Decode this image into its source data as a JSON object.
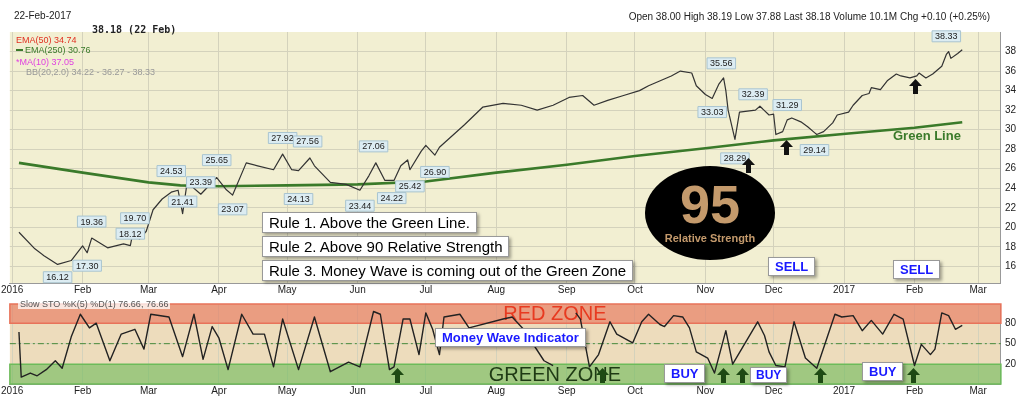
{
  "chart_data": [
    {
      "type": "line",
      "subtitle": "22-Feb-2017",
      "marker": "none",
      "grid": true,
      "legend": "top left",
      "xlim": [
        "2015-12-31",
        "2017-03-11"
      ],
      "xticks": [
        {
          "value": "2016-01-01",
          "label": "2016"
        },
        {
          "value": "2016-02-01",
          "label": "Feb"
        },
        {
          "value": "2016-03-01",
          "label": "Mar"
        },
        {
          "value": "2016-04-01",
          "label": "Apr"
        },
        {
          "value": "2016-05-01",
          "label": "May"
        },
        {
          "value": "2016-06-01",
          "label": "Jun"
        },
        {
          "value": "2016-07-01",
          "label": "Jul"
        },
        {
          "value": "2016-08-01",
          "label": "Aug"
        },
        {
          "value": "2016-09-01",
          "label": "Sep"
        },
        {
          "value": "2016-10-01",
          "label": "Oct"
        },
        {
          "value": "2016-11-01",
          "label": "Nov"
        },
        {
          "value": "2016-12-01",
          "label": "Dec"
        },
        {
          "value": "2017-01-01",
          "label": "2017"
        },
        {
          "value": "2017-02-01",
          "label": "Feb"
        },
        {
          "value": "2017-03-01",
          "label": "Mar"
        }
      ],
      "ylim": [
        14.3,
        40
      ],
      "yticks": [
        16,
        18,
        20,
        22,
        24,
        26,
        28,
        30,
        32,
        34,
        36,
        38
      ],
      "series": [
        {
          "color": "#333333",
          "x": [
            "2016-01-04",
            "2016-01-11",
            "2016-01-15",
            "2016-01-21",
            "2016-01-27",
            "2016-02-01",
            "2016-02-03",
            "2016-02-05",
            "2016-02-12",
            "2016-02-19",
            "2016-02-22",
            "2016-02-23",
            "2016-02-26",
            "2016-02-29",
            "2016-03-03",
            "2016-03-07",
            "2016-03-11",
            "2016-03-14",
            "2016-03-16",
            "2016-03-18",
            "2016-03-24",
            "2016-03-31",
            "2016-04-04",
            "2016-04-07",
            "2016-04-13",
            "2016-04-18",
            "2016-04-25",
            "2016-04-29",
            "2016-05-03",
            "2016-05-06",
            "2016-05-11",
            "2016-05-13",
            "2016-05-20",
            "2016-05-27",
            "2016-06-02",
            "2016-06-06",
            "2016-06-09",
            "2016-06-13",
            "2016-06-17",
            "2016-06-20",
            "2016-06-23",
            "2016-06-24",
            "2016-06-29",
            "2016-07-01",
            "2016-07-05",
            "2016-07-07",
            "2016-07-18",
            "2016-07-26",
            "2016-08-04",
            "2016-08-12",
            "2016-08-19",
            "2016-08-26",
            "2016-09-02",
            "2016-09-08",
            "2016-09-13",
            "2016-09-19",
            "2016-09-26",
            "2016-10-03",
            "2016-10-07",
            "2016-10-17",
            "2016-10-21",
            "2016-10-26",
            "2016-10-28",
            "2016-11-01",
            "2016-11-04",
            "2016-11-07",
            "2016-11-09",
            "2016-11-10",
            "2016-11-11",
            "2016-11-14",
            "2016-11-16",
            "2016-11-23",
            "2016-11-25",
            "2016-11-29",
            "2016-12-01",
            "2016-12-02",
            "2016-12-05",
            "2016-12-07",
            "2016-12-09",
            "2016-12-13",
            "2016-12-16",
            "2016-12-19",
            "2016-12-20",
            "2016-12-23",
            "2016-12-27",
            "2016-12-29",
            "2017-01-03",
            "2017-01-05",
            "2017-01-09",
            "2017-01-12",
            "2017-01-13",
            "2017-01-17",
            "2017-01-20",
            "2017-01-24",
            "2017-01-26",
            "2017-01-30",
            "2017-02-02",
            "2017-02-03",
            "2017-02-06",
            "2017-02-09",
            "2017-02-13",
            "2017-02-15",
            "2017-02-16",
            "2017-02-17",
            "2017-02-20",
            "2017-02-22"
          ],
          "values": [
            19.5,
            17.8,
            17.1,
            16.2,
            16.6,
            18.1,
            17.4,
            18.9,
            17.9,
            18.3,
            18.12,
            19.3,
            18.8,
            19.6,
            21.8,
            22.9,
            23.6,
            23.8,
            21.41,
            24.6,
            23.39,
            25.1,
            23.9,
            23.3,
            26.6,
            26.3,
            25.9,
            27.5,
            25.9,
            25.8,
            27.1,
            26.3,
            24.6,
            24.4,
            23.8,
            25.3,
            26.6,
            24.8,
            24.8,
            26.3,
            26.9,
            25.9,
            27.8,
            28.4,
            27.4,
            28.2,
            30.5,
            32.3,
            32.7,
            32.5,
            32.0,
            32.5,
            33.3,
            33.5,
            32.5,
            33.0,
            33.5,
            34.0,
            34.5,
            35.5,
            36.0,
            35.8,
            34.5,
            33.6,
            33.2,
            34.7,
            35.3,
            34.0,
            32.0,
            29.0,
            31.8,
            32.0,
            32.4,
            31.5,
            31.6,
            29.5,
            29.8,
            31.0,
            31.2,
            30.8,
            30.3,
            29.7,
            29.5,
            29.8,
            30.7,
            31.5,
            31.8,
            32.5,
            33.5,
            33.7,
            34.3,
            34.1,
            35.0,
            35.7,
            35.5,
            35.3,
            35.5,
            35.8,
            35.3,
            35.7,
            36.5,
            37.7,
            38.0,
            37.3,
            37.8,
            38.18
          ]
        },
        {
          "name": "EMA(250) 30.76",
          "color": "#3a7a2a",
          "x": [
            "2016-01-04",
            "2016-02-01",
            "2016-03-01",
            "2016-03-15",
            "2016-04-01",
            "2016-05-01",
            "2016-06-01",
            "2016-07-01",
            "2016-08-01",
            "2016-09-01",
            "2016-10-01",
            "2016-11-01",
            "2016-12-01",
            "2017-01-03",
            "2017-02-01",
            "2017-02-22"
          ],
          "values": [
            26.6,
            25.6,
            24.6,
            24.3,
            24.2,
            24.3,
            24.4,
            24.7,
            25.6,
            26.4,
            27.3,
            28.1,
            28.9,
            29.6,
            30.2,
            30.76
          ]
        }
      ],
      "annotations": [
        "38.18 (22 Feb)",
        "EMA(50) 34.74",
        "*MA(10) 37.05",
        "BB(20,2.0) 34.22 - 36.27 - 38.33",
        "Open 38.00 High 38.19 Low 37.88 Last 38.18 Volume 10.1M Chg +0.10 (+0.25%)",
        "Rule 1. Above the Green Line.",
        "Rule 2. Above 90 Relative Strength",
        "Rule 3. Money Wave is coming out of the Green Zone",
        "95",
        "Relative Strength",
        "Green Line",
        {
          "text": "16.12",
          "x": "2016-01-21",
          "y": 16.12
        },
        {
          "text": "17.30",
          "x": "2016-02-03",
          "y": 17.3
        },
        {
          "text": "19.36",
          "x": "2016-02-05",
          "y": 19.36
        },
        {
          "text": "18.12",
          "x": "2016-02-22",
          "y": 18.12
        },
        {
          "text": "19.70",
          "x": "2016-02-24",
          "y": 19.7
        },
        {
          "text": "24.53",
          "x": "2016-03-11",
          "y": 24.53
        },
        {
          "text": "21.41",
          "x": "2016-03-16",
          "y": 21.41
        },
        {
          "text": "23.39",
          "x": "2016-03-24",
          "y": 23.39
        },
        {
          "text": "25.65",
          "x": "2016-03-31",
          "y": 25.65
        },
        {
          "text": "23.07",
          "x": "2016-04-07",
          "y": 23.07
        },
        {
          "text": "27.92",
          "x": "2016-04-29",
          "y": 27.92
        },
        {
          "text": "24.13",
          "x": "2016-05-06",
          "y": 24.13
        },
        {
          "text": "27.56",
          "x": "2016-05-10",
          "y": 27.56
        },
        {
          "text": "23.44",
          "x": "2016-06-02",
          "y": 23.44
        },
        {
          "text": "27.06",
          "x": "2016-06-08",
          "y": 27.06
        },
        {
          "text": "24.22",
          "x": "2016-06-16",
          "y": 24.22
        },
        {
          "text": "25.42",
          "x": "2016-06-24",
          "y": 25.42
        },
        {
          "text": "26.90",
          "x": "2016-07-05",
          "y": 26.9
        },
        {
          "text": "33.03",
          "x": "2016-11-04",
          "y": 33.03
        },
        {
          "text": "35.56",
          "x": "2016-11-08",
          "y": 35.56
        },
        {
          "text": "28.29",
          "x": "2016-11-14",
          "y": 28.29
        },
        {
          "text": "32.39",
          "x": "2016-11-22",
          "y": 32.39
        },
        {
          "text": "31.29",
          "x": "2016-12-07",
          "y": 31.29
        },
        {
          "text": "29.14",
          "x": "2016-12-19",
          "y": 29.14
        },
        {
          "text": "38.33",
          "x": "2017-02-15",
          "y": 38.33
        }
      ]
    },
    {
      "type": "line",
      "marker": "none",
      "grid": true,
      "xlim": [
        "2015-12-31",
        "2017-03-11"
      ],
      "xticks": [
        {
          "value": "2016-01-01",
          "label": "2016"
        },
        {
          "value": "2016-02-01",
          "label": "Feb"
        },
        {
          "value": "2016-03-01",
          "label": "Mar"
        },
        {
          "value": "2016-04-01",
          "label": "Apr"
        },
        {
          "value": "2016-05-01",
          "label": "May"
        },
        {
          "value": "2016-06-01",
          "label": "Jun"
        },
        {
          "value": "2016-07-01",
          "label": "Jul"
        },
        {
          "value": "2016-08-01",
          "label": "Aug"
        },
        {
          "value": "2016-09-01",
          "label": "Sep"
        },
        {
          "value": "2016-10-01",
          "label": "Oct"
        },
        {
          "value": "2016-11-01",
          "label": "Nov"
        },
        {
          "value": "2016-12-01",
          "label": "Dec"
        },
        {
          "value": "2017-01-01",
          "label": "2017"
        },
        {
          "value": "2017-02-01",
          "label": "Feb"
        },
        {
          "value": "2017-03-01",
          "label": "Mar"
        }
      ],
      "ylim": [
        -9,
        108
      ],
      "yticks": [
        20,
        50,
        80
      ],
      "bands": [
        {
          "axis": "y",
          "from": 80,
          "to": 108,
          "label": "RED ZONE",
          "color": "#e8735a"
        },
        {
          "axis": "y",
          "from": -9,
          "to": 20,
          "label": "GREEN ZONE",
          "color": "#6dbb5a"
        }
      ],
      "ref_lines": [
        {
          "axis": "y",
          "value": 50,
          "color": "#4a8a3a",
          "line_style": "dashed"
        }
      ],
      "series": [
        {
          "color": "#222222",
          "x": [
            "2016-01-04",
            "2016-01-05",
            "2016-01-09",
            "2016-01-12",
            "2016-01-16",
            "2016-01-20",
            "2016-01-23",
            "2016-01-27",
            "2016-01-31",
            "2016-02-04",
            "2016-02-07",
            "2016-02-13",
            "2016-02-18",
            "2016-02-24",
            "2016-02-28",
            "2016-03-02",
            "2016-03-10",
            "2016-03-16",
            "2016-03-21",
            "2016-03-25",
            "2016-03-29",
            "2016-04-01",
            "2016-04-05",
            "2016-04-11",
            "2016-04-16",
            "2016-04-21",
            "2016-04-25",
            "2016-04-29",
            "2016-05-06",
            "2016-05-13",
            "2016-05-20",
            "2016-05-24",
            "2016-05-28",
            "2016-06-02",
            "2016-06-08",
            "2016-06-11",
            "2016-06-15",
            "2016-06-17",
            "2016-06-21",
            "2016-06-24",
            "2016-06-28",
            "2016-07-01",
            "2016-07-04",
            "2016-07-07",
            "2016-07-09",
            "2016-07-16",
            "2016-07-20",
            "2016-08-04",
            "2016-08-08",
            "2016-08-13",
            "2016-08-22",
            "2016-08-26",
            "2016-08-31",
            "2016-09-05",
            "2016-09-07",
            "2016-09-11",
            "2016-09-15",
            "2016-09-20",
            "2016-09-23",
            "2016-09-30",
            "2016-10-04",
            "2016-10-07",
            "2016-10-12",
            "2016-10-14",
            "2016-10-18",
            "2016-10-22",
            "2016-10-25",
            "2016-10-28",
            "2016-11-02",
            "2016-11-05",
            "2016-11-10",
            "2016-11-13",
            "2016-11-24",
            "2016-11-27",
            "2016-11-29",
            "2016-12-02",
            "2016-12-06",
            "2016-12-10",
            "2016-12-15",
            "2016-12-20",
            "2016-12-28",
            "2016-12-31",
            "2017-01-05",
            "2017-01-09",
            "2017-01-13",
            "2017-01-18",
            "2017-01-23",
            "2017-01-27",
            "2017-02-01",
            "2017-02-04",
            "2017-02-08",
            "2017-02-10",
            "2017-02-13",
            "2017-02-16",
            "2017-02-19",
            "2017-02-22"
          ],
          "values": [
            67,
            1,
            7,
            3,
            12,
            25,
            14,
            60,
            93,
            73,
            80,
            25,
            64,
            71,
            42,
            93,
            89,
            31,
            93,
            27,
            75,
            58,
            12,
            93,
            64,
            64,
            16,
            86,
            12,
            89,
            9,
            16,
            23,
            16,
            97,
            93,
            12,
            16,
            86,
            86,
            34,
            95,
            71,
            34,
            89,
            93,
            73,
            86,
            89,
            71,
            25,
            18,
            null,
            95,
            86,
            16,
            34,
            82,
            64,
            51,
            82,
            93,
            78,
            75,
            91,
            89,
            73,
            38,
            29,
            7,
            69,
            20,
            82,
            62,
            38,
            18,
            16,
            82,
            29,
            14,
            93,
            89,
            91,
            69,
            84,
            64,
            93,
            86,
            18,
            49,
            34,
            42,
            95,
            91,
            71,
            76.66
          ]
        }
      ],
      "annotations": [
        "Slow STO %K(5) %D(1) 76.66, 76.66",
        "Money Wave Indicator",
        "SELL",
        "SELL",
        "BUY",
        "BUY",
        "BUY"
      ]
    }
  ]
}
